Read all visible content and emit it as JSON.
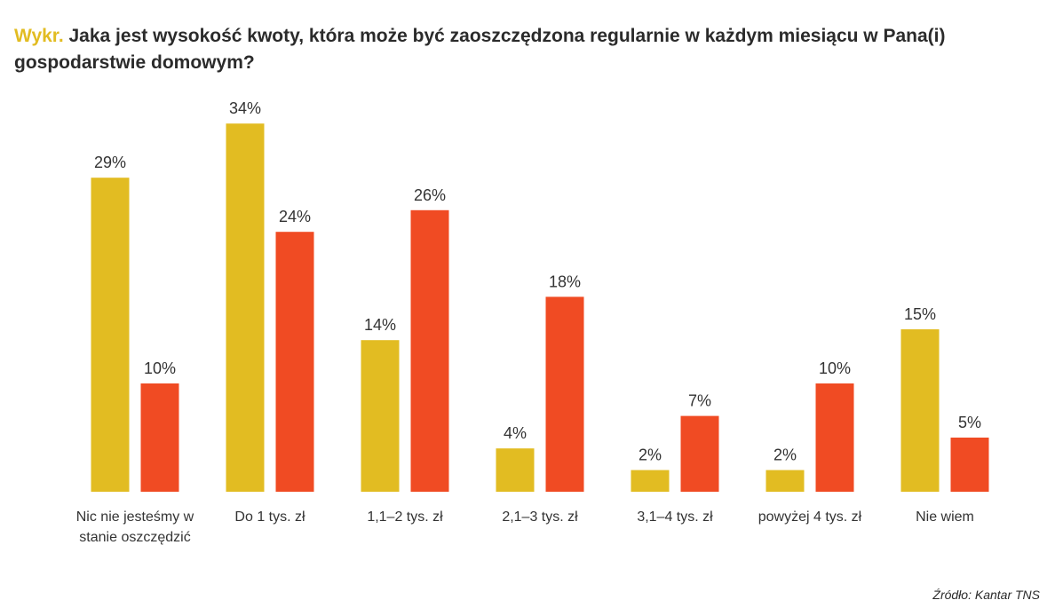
{
  "title": {
    "prefix": "Wykr.",
    "text": "Jaka jest wysokość kwoty, która może być zaoszczędzona regularnie w każdym miesiącu w Pana(i) gospodarstwie domowym?"
  },
  "source": "Źródło: Kantar TNS",
  "colors": {
    "series1": "#e2bc22",
    "series2": "#f04b23",
    "title_prefix": "#e2bc22"
  },
  "chart_data": {
    "type": "bar",
    "title": "Jaka jest wysokość kwoty, która może być zaoszczędzona regularnie w każdym miesiącu w Pana(i) gospodarstwie domowym?",
    "xlabel": "",
    "ylabel": "",
    "ylim": [
      0,
      34
    ],
    "grid": false,
    "legend": "none",
    "unit": "%",
    "categories": [
      "Nic nie jesteśmy w stanie oszczędzić",
      "Do 1 tys. zł",
      "1,1–2 tys. zł",
      "2,1–3 tys. zł",
      "3,1–4 tys. zł",
      "powyżej 4 tys. zł",
      "Nie wiem"
    ],
    "series": [
      {
        "values": [
          29,
          34,
          14,
          4,
          2,
          2,
          15
        ],
        "labels": [
          "29%",
          "34%",
          "14%",
          "4%",
          "2%",
          "2%",
          "15%"
        ]
      },
      {
        "values": [
          10,
          24,
          26,
          18,
          7,
          10,
          5
        ],
        "labels": [
          "10%",
          "24%",
          "26%",
          "18%",
          "7%",
          "10%",
          "5%"
        ]
      }
    ]
  }
}
